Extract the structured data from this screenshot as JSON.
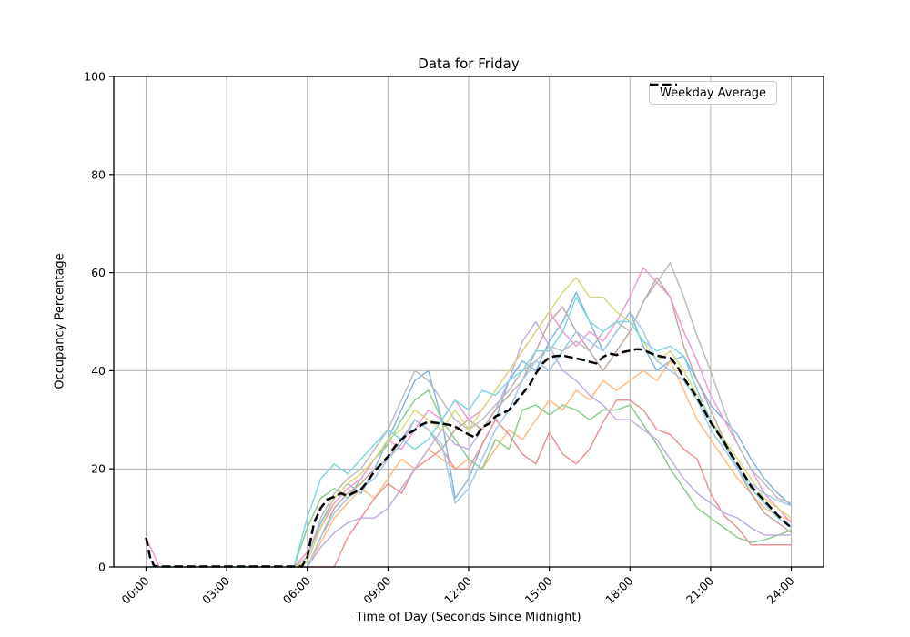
{
  "chart_data": {
    "type": "line",
    "title": "Data for Friday",
    "xlabel": "Time of Day (Seconds Since Midnight)",
    "ylabel": "Occupancy Percentage",
    "xlim_hours": [
      -1.2,
      25.2
    ],
    "ylim": [
      0,
      100
    ],
    "grid": true,
    "x_ticks_hours": [
      0,
      3,
      6,
      9,
      12,
      15,
      18,
      21,
      24
    ],
    "x_tick_labels": [
      "00:00",
      "03:00",
      "06:00",
      "09:00",
      "12:00",
      "15:00",
      "18:00",
      "21:00",
      "24:00"
    ],
    "y_ticks": [
      0,
      20,
      40,
      60,
      80,
      100
    ],
    "legend": {
      "position": "upper right",
      "entries": [
        "Weekday Average"
      ]
    },
    "x_hours": [
      0,
      0.5,
      1,
      1.5,
      2,
      2.5,
      3,
      3.5,
      4,
      4.5,
      5,
      5.5,
      6,
      6.5,
      7,
      7.5,
      8,
      8.5,
      9,
      9.5,
      10,
      10.5,
      11,
      11.5,
      12,
      12.5,
      13,
      13.5,
      14,
      14.5,
      15,
      15.5,
      16,
      16.5,
      17,
      17.5,
      18,
      18.5,
      19,
      19.5,
      20,
      20.5,
      21,
      21.5,
      22,
      22.5,
      23,
      23.5,
      24
    ],
    "series": [
      {
        "name": "line-1",
        "color": "#85b5d8",
        "values": [
          0,
          0,
          0,
          0,
          0,
          0,
          0,
          0,
          0,
          0,
          0,
          0,
          2,
          9,
          14,
          17,
          15,
          20,
          26,
          32,
          38,
          40,
          30,
          14,
          18,
          25,
          30,
          38,
          42,
          40,
          46,
          50,
          56,
          50,
          44,
          48,
          52,
          45,
          40,
          42,
          43,
          38,
          33,
          30,
          27,
          22,
          18,
          15,
          12.5
        ]
      },
      {
        "name": "line-2",
        "color": "#ffbc84",
        "values": [
          0,
          0,
          0,
          0,
          0,
          0,
          0,
          0,
          0,
          0,
          0,
          0,
          0,
          5,
          10,
          13,
          16,
          14,
          18,
          22,
          20,
          24,
          22,
          20,
          22,
          20,
          24,
          28,
          26,
          30,
          34,
          32,
          36,
          34,
          38,
          36,
          38,
          40,
          38,
          42,
          36,
          30,
          26,
          22,
          18,
          15,
          12,
          10.5,
          9.5
        ]
      },
      {
        "name": "line-3",
        "color": "#8fcc8f",
        "values": [
          0,
          0,
          0,
          0,
          0,
          0,
          0,
          0,
          0,
          0,
          0,
          0,
          8,
          14,
          16,
          14,
          18,
          22,
          25,
          30,
          34,
          36,
          30,
          26,
          22,
          20,
          26,
          24,
          32,
          33,
          31,
          33,
          32,
          30,
          32,
          32,
          33,
          29,
          25,
          20,
          16,
          12,
          10,
          8,
          6,
          5,
          5.5,
          6.5,
          7.5
        ]
      },
      {
        "name": "line-4",
        "color": "#e99496",
        "values": [
          0,
          0,
          0,
          0,
          0,
          0,
          0,
          0,
          0,
          0,
          0,
          0,
          0,
          0,
          0,
          6,
          10,
          14,
          17,
          15,
          20,
          22,
          24,
          20,
          20,
          25,
          30,
          27,
          23,
          21,
          27.5,
          23,
          21,
          24,
          29.5,
          34,
          34,
          32,
          28,
          27,
          24,
          22,
          15,
          10.5,
          8,
          4.5,
          4.5,
          4.5,
          4.5
        ]
      },
      {
        "name": "line-5",
        "color": "#c3aede",
        "values": [
          0,
          0,
          0,
          0,
          0,
          0,
          0,
          0,
          0,
          0,
          0,
          0,
          0,
          4,
          7,
          9,
          10,
          10,
          12,
          16,
          20,
          24,
          28,
          25,
          24,
          28,
          32,
          38,
          46,
          50,
          45,
          40,
          38,
          35,
          33,
          30,
          30,
          28,
          26,
          22,
          18,
          15,
          13,
          11,
          10,
          8,
          6.5,
          6.5,
          6.5
        ]
      },
      {
        "name": "line-6",
        "color": "#c3a8a2",
        "values": [
          0,
          0,
          0,
          0,
          0,
          0,
          0,
          0,
          0,
          0,
          0,
          0,
          0,
          6,
          12,
          15,
          17,
          20,
          22,
          26,
          30,
          28,
          24,
          28,
          30,
          28,
          32,
          35,
          38,
          44,
          50,
          53,
          48,
          44,
          40,
          44,
          48,
          54,
          59,
          55,
          45,
          38,
          32,
          26,
          20,
          15,
          11,
          9,
          7
        ]
      },
      {
        "name": "line-7",
        "color": "#ee9bd3",
        "values": [
          6,
          0,
          0,
          0,
          0,
          0,
          0,
          0,
          0,
          0,
          0,
          0,
          3,
          8,
          13,
          16,
          18,
          22,
          26,
          24,
          28,
          32,
          30,
          34,
          30,
          32,
          36,
          40,
          44,
          48,
          52,
          48,
          45,
          48,
          46,
          50,
          55,
          61,
          58,
          55,
          48,
          42,
          35,
          30,
          25,
          20,
          15,
          12,
          9
        ]
      },
      {
        "name": "line-8",
        "color": "#bcbcbc",
        "values": [
          0,
          0,
          0,
          0,
          0,
          0,
          0,
          0,
          0,
          0,
          0,
          0,
          2,
          10,
          15,
          18,
          20,
          24,
          28,
          34,
          40,
          38,
          34,
          30,
          28,
          30,
          33,
          36,
          40,
          42,
          45,
          44,
          46,
          44,
          48,
          50,
          48,
          54,
          58,
          62,
          55,
          47,
          40,
          32,
          25,
          20,
          17,
          14,
          13
        ]
      },
      {
        "name": "line-9",
        "color": "#d9da7d",
        "values": [
          0,
          0,
          0,
          0,
          0,
          0,
          0,
          0,
          0,
          0,
          0,
          0,
          1,
          8,
          14,
          17,
          19,
          22,
          26,
          28,
          32,
          30,
          28,
          32,
          28,
          32,
          36,
          40,
          44,
          48,
          52,
          56,
          59,
          55,
          55,
          52,
          50,
          46,
          42,
          44,
          40,
          35,
          30,
          26,
          22,
          18,
          14,
          12,
          10
        ]
      },
      {
        "name": "line-10",
        "color": "#83d7e2",
        "values": [
          0,
          0,
          0,
          0,
          0,
          0,
          0,
          0,
          0,
          0,
          0,
          0,
          10,
          18,
          21,
          19,
          22,
          25,
          28,
          26,
          24,
          26,
          30,
          34,
          32,
          36,
          35,
          38,
          40,
          44,
          44,
          48,
          55,
          50,
          48,
          50,
          50,
          46,
          44,
          45,
          43,
          36,
          30,
          25,
          20,
          16,
          13,
          10,
          8
        ]
      },
      {
        "name": "line-11",
        "color": "#a3c8e8",
        "values": [
          0,
          0,
          0,
          0,
          0,
          0,
          0,
          0,
          0,
          0,
          0,
          0,
          0,
          6,
          11,
          14,
          16,
          18,
          22,
          25,
          30,
          28,
          25,
          13,
          16,
          22,
          28,
          32,
          38,
          42,
          40,
          44,
          48,
          46,
          44,
          48,
          52,
          48,
          42,
          40,
          38,
          34,
          28,
          24,
          20,
          17,
          15,
          13.5,
          12.5
        ]
      }
    ],
    "average_series": {
      "name": "Weekday Average",
      "color": "#000000",
      "dashed": true,
      "line_width": 2.5,
      "points": [
        [
          0,
          6
        ],
        [
          0.15,
          2
        ],
        [
          0.3,
          0.2
        ],
        [
          0.5,
          0.1
        ],
        [
          5.8,
          0.1
        ],
        [
          6,
          2
        ],
        [
          6.25,
          9
        ],
        [
          6.5,
          12
        ],
        [
          6.75,
          13.8
        ],
        [
          7,
          14.3
        ],
        [
          7.25,
          15
        ],
        [
          7.5,
          14.5
        ],
        [
          7.75,
          15.2
        ],
        [
          8,
          15.8
        ],
        [
          8.25,
          17.5
        ],
        [
          8.5,
          19.5
        ],
        [
          8.75,
          21
        ],
        [
          9,
          22.5
        ],
        [
          9.25,
          24.5
        ],
        [
          9.5,
          26
        ],
        [
          9.75,
          27.2
        ],
        [
          10,
          27.9
        ],
        [
          10.25,
          29
        ],
        [
          10.5,
          29.6
        ],
        [
          10.75,
          29.4
        ],
        [
          11,
          29.2
        ],
        [
          11.25,
          29
        ],
        [
          11.5,
          28.6
        ],
        [
          11.75,
          27.8
        ],
        [
          12,
          27
        ],
        [
          12.25,
          26.4
        ],
        [
          12.5,
          28.5
        ],
        [
          12.75,
          29.2
        ],
        [
          13,
          30.7
        ],
        [
          13.25,
          31.3
        ],
        [
          13.5,
          32
        ],
        [
          13.75,
          33.5
        ],
        [
          14,
          35.3
        ],
        [
          14.25,
          37
        ],
        [
          14.5,
          39.4
        ],
        [
          14.75,
          41.5
        ],
        [
          15,
          42.7
        ],
        [
          15.25,
          43
        ],
        [
          15.5,
          43.1
        ],
        [
          15.75,
          42.8
        ],
        [
          16,
          42.5
        ],
        [
          16.25,
          42.2
        ],
        [
          16.5,
          41.8
        ],
        [
          16.75,
          41.5
        ],
        [
          17,
          42.8
        ],
        [
          17.25,
          43.5
        ],
        [
          17.5,
          43.2
        ],
        [
          17.75,
          43.8
        ],
        [
          18,
          44.1
        ],
        [
          18.25,
          44.4
        ],
        [
          18.5,
          44.3
        ],
        [
          18.75,
          43.6
        ],
        [
          19,
          43.1
        ],
        [
          19.25,
          42.8
        ],
        [
          19.5,
          42.6
        ],
        [
          19.75,
          41
        ],
        [
          20,
          38.5
        ],
        [
          20.25,
          36.5
        ],
        [
          20.5,
          34.5
        ],
        [
          20.75,
          32
        ],
        [
          21,
          29.5
        ],
        [
          21.25,
          27.5
        ],
        [
          21.5,
          25.5
        ],
        [
          21.75,
          23
        ],
        [
          22,
          21
        ],
        [
          22.25,
          18.8
        ],
        [
          22.5,
          16.5
        ],
        [
          22.75,
          15
        ],
        [
          23,
          13.5
        ],
        [
          23.25,
          12
        ],
        [
          23.5,
          10.5
        ],
        [
          23.75,
          9.2
        ],
        [
          24,
          8
        ]
      ]
    },
    "colors": {
      "grid": "#b0b0b0",
      "spine": "#000000",
      "average": "#000000"
    }
  }
}
